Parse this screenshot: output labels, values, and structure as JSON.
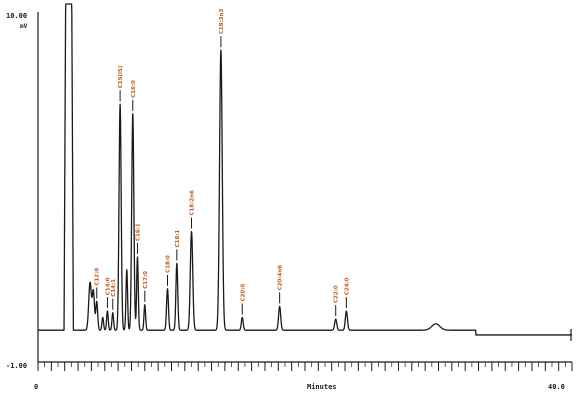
{
  "colors": {
    "background": "#ffffff",
    "trace": "#1a1a1a",
    "peak_label": "#c0561c"
  },
  "chart_data": {
    "type": "line",
    "title": "",
    "xlabel": "Minutes",
    "ylabel": "mV",
    "xlim": [
      0,
      40
    ],
    "ylim": [
      -1.0,
      10.0
    ],
    "x_tick_labels": [
      "0",
      "40.0"
    ],
    "y_tick_labels": [
      "10.00",
      "-1.00"
    ],
    "baseline_mv": 0.0,
    "solvent_front": {
      "x": 2.3,
      "width": 0.35
    },
    "peaks": [
      {
        "label": "",
        "x": 3.9,
        "height": 1.5,
        "width": 0.1
      },
      {
        "label": "",
        "x": 4.15,
        "height": 1.2,
        "width": 0.08
      },
      {
        "label": "C12:0",
        "x": 4.4,
        "height": 0.9,
        "width": 0.07
      },
      {
        "label": "",
        "x": 4.85,
        "height": 0.4,
        "width": 0.06
      },
      {
        "label": "C14:0",
        "x": 5.2,
        "height": 0.6,
        "width": 0.06
      },
      {
        "label": "C14:1",
        "x": 5.6,
        "height": 0.55,
        "width": 0.06
      },
      {
        "label": "C15(IS)",
        "x": 6.15,
        "height": 7.1,
        "width": 0.08
      },
      {
        "label": "",
        "x": 6.65,
        "height": 1.9,
        "width": 0.06
      },
      {
        "label": "C16:0",
        "x": 7.1,
        "height": 6.8,
        "width": 0.08
      },
      {
        "label": "C16:1",
        "x": 7.45,
        "height": 2.3,
        "width": 0.06
      },
      {
        "label": "C17:0",
        "x": 8.0,
        "height": 0.8,
        "width": 0.06
      },
      {
        "label": "C18:0",
        "x": 9.7,
        "height": 1.3,
        "width": 0.07
      },
      {
        "label": "C18:1",
        "x": 10.4,
        "height": 2.1,
        "width": 0.07
      },
      {
        "label": "C18:2n6",
        "x": 11.5,
        "height": 3.1,
        "width": 0.09
      },
      {
        "label": "C18:3n3",
        "x": 13.7,
        "height": 8.8,
        "width": 0.1
      },
      {
        "label": "C20:0",
        "x": 15.3,
        "height": 0.4,
        "width": 0.07
      },
      {
        "label": "C20:4n6",
        "x": 18.1,
        "height": 0.75,
        "width": 0.08
      },
      {
        "label": "C22:0",
        "x": 22.3,
        "height": 0.35,
        "width": 0.08
      },
      {
        "label": "C24:0",
        "x": 23.1,
        "height": 0.6,
        "width": 0.08
      },
      {
        "label": "",
        "x": 29.8,
        "height": 0.2,
        "width": 0.3
      }
    ],
    "baseline_drop": {
      "x": 32.8,
      "to": -0.15
    }
  }
}
